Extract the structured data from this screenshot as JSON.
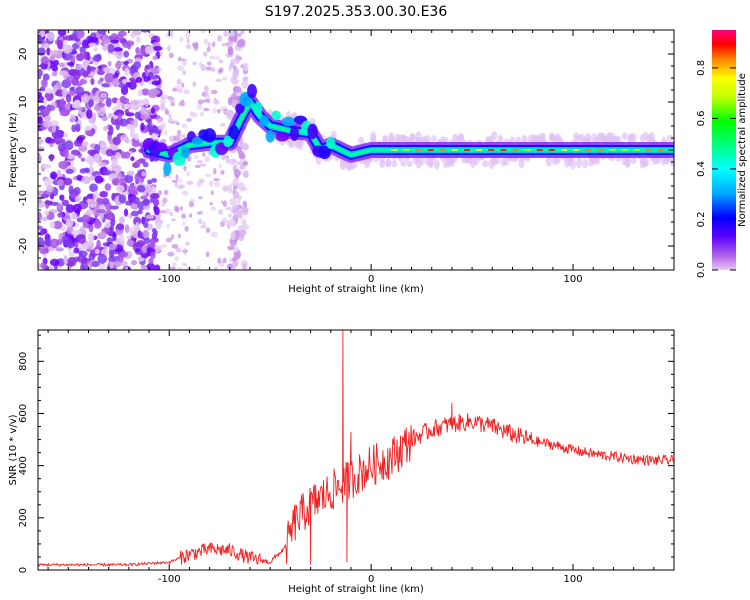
{
  "title": "S197.2025.353.00.30.E36",
  "chart_data": [
    {
      "type": "heatmap",
      "xlabel": "Height of straight line (km)",
      "ylabel": "Frequency (Hz)",
      "xlim": [
        -165,
        150
      ],
      "ylim": [
        -25,
        25
      ],
      "x_ticks": [
        -100,
        0,
        100
      ],
      "y_ticks": [
        -20,
        -10,
        0,
        10,
        20
      ],
      "colorbar": {
        "label": "Normalized spectral amplitude",
        "range": [
          0,
          0.95
        ],
        "ticks": [
          0.0,
          0.2,
          0.4,
          0.6,
          0.8
        ]
      },
      "ridge": [
        {
          "x": -110,
          "y": 0
        },
        {
          "x": -100,
          "y": -1
        },
        {
          "x": -90,
          "y": 1
        },
        {
          "x": -80,
          "y": 1.5
        },
        {
          "x": -70,
          "y": 1.5
        },
        {
          "x": -65,
          "y": 6
        },
        {
          "x": -60,
          "y": 10
        },
        {
          "x": -55,
          "y": 7
        },
        {
          "x": -50,
          "y": 5
        },
        {
          "x": -40,
          "y": 4
        },
        {
          "x": -30,
          "y": 3.5
        },
        {
          "x": -25,
          "y": 0
        },
        {
          "x": -20,
          "y": 1
        },
        {
          "x": -10,
          "y": -1
        },
        {
          "x": 0,
          "y": 0
        },
        {
          "x": 150,
          "y": 0
        }
      ]
    },
    {
      "type": "line",
      "xlabel": "Height of straight line (km)",
      "ylabel": "SNR (10 * v/v)",
      "xlim": [
        -165,
        150
      ],
      "ylim": [
        0,
        920
      ],
      "x_ticks": [
        -100,
        0,
        100
      ],
      "y_ticks": [
        0,
        200,
        400,
        600,
        800
      ],
      "color": "#ee2222",
      "trend": [
        {
          "x": -165,
          "y": 20
        },
        {
          "x": -120,
          "y": 20
        },
        {
          "x": -100,
          "y": 30
        },
        {
          "x": -90,
          "y": 60
        },
        {
          "x": -80,
          "y": 80
        },
        {
          "x": -70,
          "y": 75
        },
        {
          "x": -60,
          "y": 45
        },
        {
          "x": -50,
          "y": 30
        },
        {
          "x": -42,
          "y": 90
        },
        {
          "x": -38,
          "y": 180
        },
        {
          "x": -30,
          "y": 250
        },
        {
          "x": -20,
          "y": 300
        },
        {
          "x": -10,
          "y": 350
        },
        {
          "x": 0,
          "y": 400
        },
        {
          "x": 10,
          "y": 430
        },
        {
          "x": 20,
          "y": 500
        },
        {
          "x": 30,
          "y": 540
        },
        {
          "x": 40,
          "y": 560
        },
        {
          "x": 50,
          "y": 570
        },
        {
          "x": 60,
          "y": 550
        },
        {
          "x": 70,
          "y": 520
        },
        {
          "x": 80,
          "y": 495
        },
        {
          "x": 90,
          "y": 480
        },
        {
          "x": 100,
          "y": 460
        },
        {
          "x": 110,
          "y": 445
        },
        {
          "x": 120,
          "y": 435
        },
        {
          "x": 130,
          "y": 425
        },
        {
          "x": 140,
          "y": 420
        },
        {
          "x": 150,
          "y": 420
        }
      ],
      "spikes": [
        {
          "x": -14,
          "y": 920
        },
        {
          "x": -10,
          "y": 530
        },
        {
          "x": -12,
          "y": 30
        },
        {
          "x": -30,
          "y": 20
        },
        {
          "x": 40,
          "y": 640
        }
      ]
    }
  ]
}
